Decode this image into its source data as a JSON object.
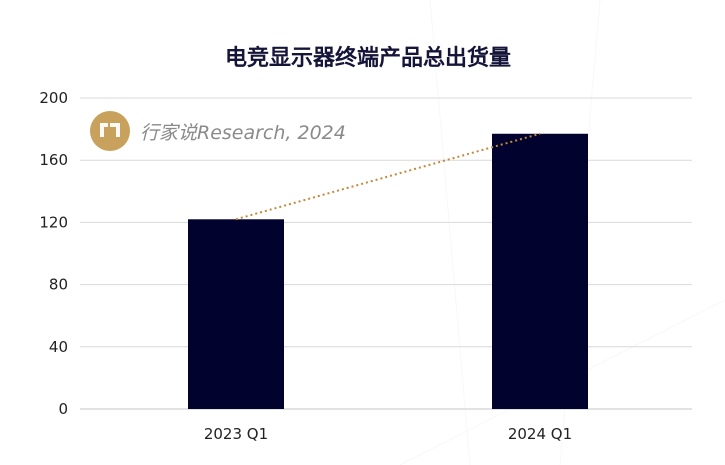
{
  "chart_data": {
    "type": "bar",
    "title": "电竞显示器终端产品总出货量",
    "categories": [
      "2023 Q1",
      "2024 Q1"
    ],
    "values": [
      122,
      177
    ],
    "ylim": [
      0,
      200
    ],
    "yticks": [
      0,
      40,
      80,
      120,
      160,
      200
    ],
    "grid": true,
    "trendline": "dotted",
    "bar_color": "#02022e",
    "trend_color": "#c28a3a",
    "grid_color": "#d9d9d9"
  },
  "watermark": {
    "text": "行家说Research, 2024",
    "logo_color": "#c8a15c"
  }
}
